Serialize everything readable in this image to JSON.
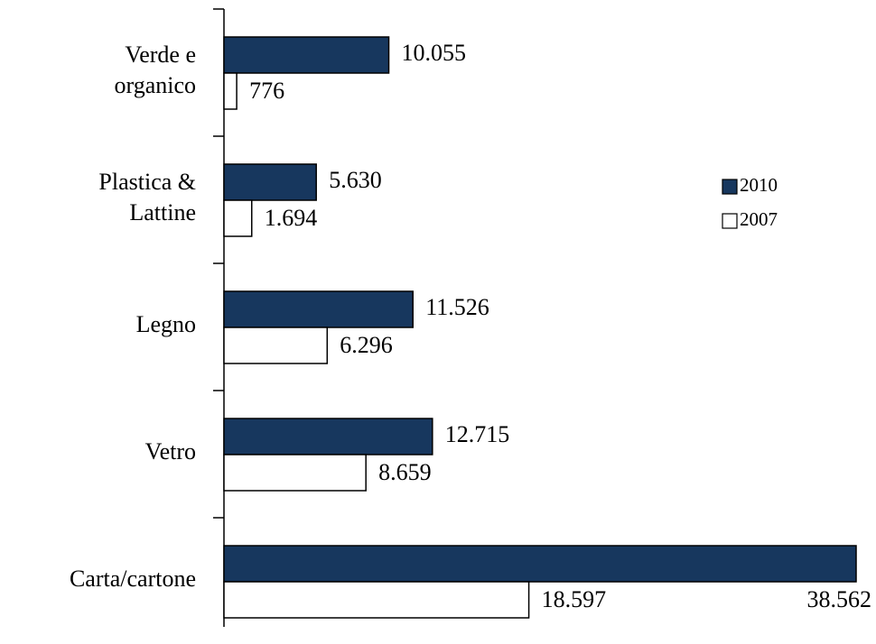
{
  "chart_data": {
    "type": "barh",
    "categories": [
      [
        "Verde e",
        "organico"
      ],
      [
        "Plastica &",
        "Lattine"
      ],
      [
        "Legno"
      ],
      [
        "Vetro"
      ],
      [
        "Carta/cartone"
      ]
    ],
    "series": [
      {
        "name": "2010",
        "color": "#17375e",
        "values": [
          10055,
          5630,
          11526,
          12715,
          38562
        ],
        "value_labels": [
          "10.055",
          "5.630",
          "11.526",
          "12.715",
          "38.562"
        ]
      },
      {
        "name": "2007",
        "color": "#ffffff",
        "values": [
          776,
          1694,
          6296,
          8659,
          18597
        ],
        "value_labels": [
          "776",
          "1.694",
          "6.296",
          "8.659",
          "18.597"
        ]
      }
    ],
    "legend": "right"
  }
}
